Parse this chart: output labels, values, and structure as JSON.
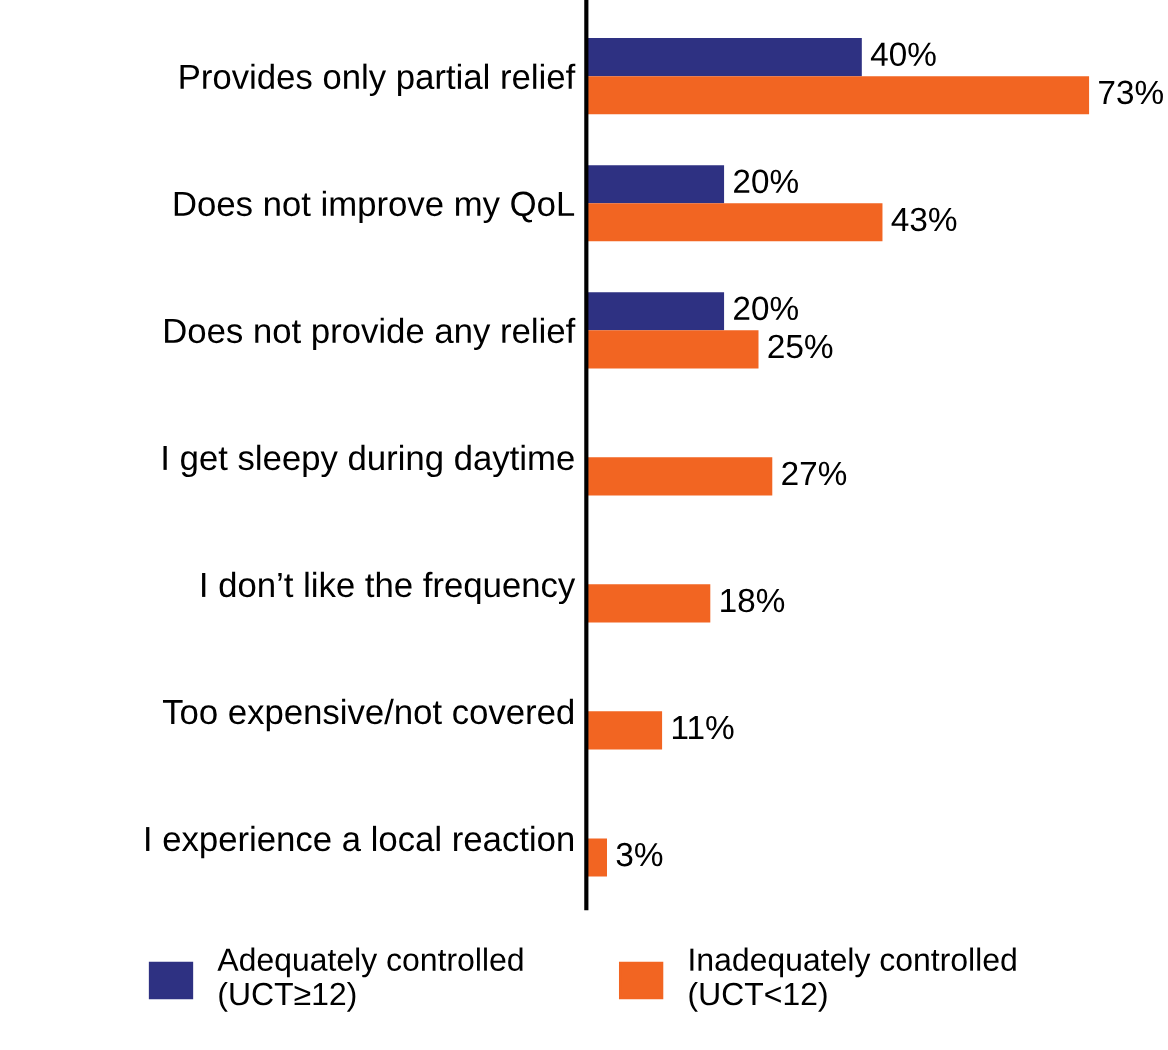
{
  "chart_data": {
    "type": "bar",
    "orientation": "horizontal",
    "categories": [
      "Provides only partial relief",
      "Does not improve my QoL",
      "Does not provide any relief",
      "I get sleepy during daytime",
      "I don’t like the frequency",
      "Too expensive/not covered",
      "I experience a local reaction"
    ],
    "series": [
      {
        "name": "Adequately controlled\n(UCT≥12)",
        "color": "#2e3182",
        "values": [
          40,
          20,
          20,
          null,
          null,
          null,
          null
        ],
        "value_labels": [
          "40%",
          "20%",
          "20%",
          null,
          null,
          null,
          null
        ]
      },
      {
        "name": "Inadequately controlled\n(UCT<12)",
        "color": "#f26522",
        "values": [
          73,
          43,
          25,
          27,
          18,
          11,
          3
        ],
        "value_labels": [
          "73%",
          "43%",
          "25%",
          "27%",
          "18%",
          "11%",
          "3%"
        ]
      }
    ],
    "legend": "bottom",
    "grid": false
  }
}
